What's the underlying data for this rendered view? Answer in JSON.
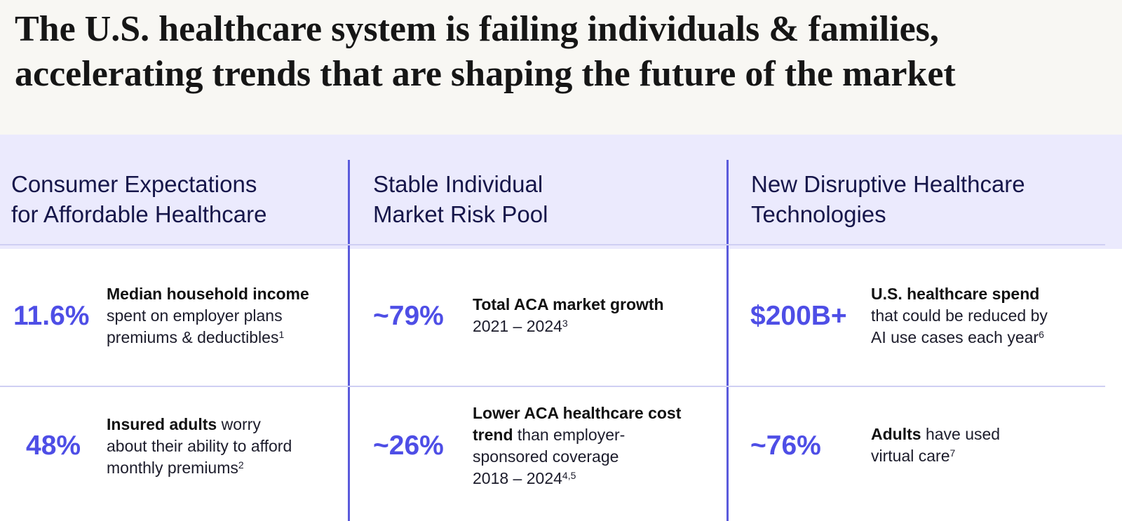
{
  "title": {
    "line1": "The U.S. healthcare system is failing individuals & families,",
    "line2": "accelerating trends that are shaping the future of the market"
  },
  "columns": [
    {
      "heading": [
        "Consumer Expectations",
        "for Affordable Healthcare"
      ],
      "stats": [
        {
          "value": "11.6%",
          "lines": [
            {
              "bold": "Median household income",
              "text": "",
              "sup": ""
            },
            {
              "bold": "",
              "text": "spent on employer plans",
              "sup": ""
            },
            {
              "bold": "",
              "text": "premiums & deductibles",
              "sup": "1"
            }
          ]
        },
        {
          "value": "48%",
          "lines": [
            {
              "bold": "Insured adults",
              "text": " worry",
              "sup": ""
            },
            {
              "bold": "",
              "text": "about their ability to afford",
              "sup": ""
            },
            {
              "bold": "",
              "text": "monthly premiums",
              "sup": "2"
            }
          ]
        }
      ]
    },
    {
      "heading": [
        "Stable Individual",
        "Market Risk Pool"
      ],
      "stats": [
        {
          "value": "~79%",
          "lines": [
            {
              "bold": "Total ACA market growth",
              "text": "",
              "sup": ""
            },
            {
              "bold": "",
              "text": "2021 – 2024",
              "sup": "3"
            }
          ]
        },
        {
          "value": "~26%",
          "lines": [
            {
              "bold": "Lower ACA healthcare cost",
              "text": "",
              "sup": ""
            },
            {
              "bold": "trend",
              "text": " than employer-",
              "sup": ""
            },
            {
              "bold": "",
              "text": "sponsored coverage",
              "sup": ""
            },
            {
              "bold": "",
              "text": "2018 – 2024",
              "sup": "4,5"
            }
          ]
        }
      ]
    },
    {
      "heading": [
        "New Disruptive Healthcare",
        "Technologies"
      ],
      "stats": [
        {
          "value": "$200B+",
          "lines": [
            {
              "bold": "U.S. healthcare spend",
              "text": "",
              "sup": ""
            },
            {
              "bold": "",
              "text": "that could be reduced by",
              "sup": ""
            },
            {
              "bold": "",
              "text": "AI use cases each year",
              "sup": "6"
            }
          ]
        },
        {
          "value": "~76%",
          "lines": [
            {
              "bold": "Adults",
              "text": " have used",
              "sup": ""
            },
            {
              "bold": "",
              "text": "virtual care",
              "sup": "7"
            }
          ]
        }
      ]
    }
  ]
}
